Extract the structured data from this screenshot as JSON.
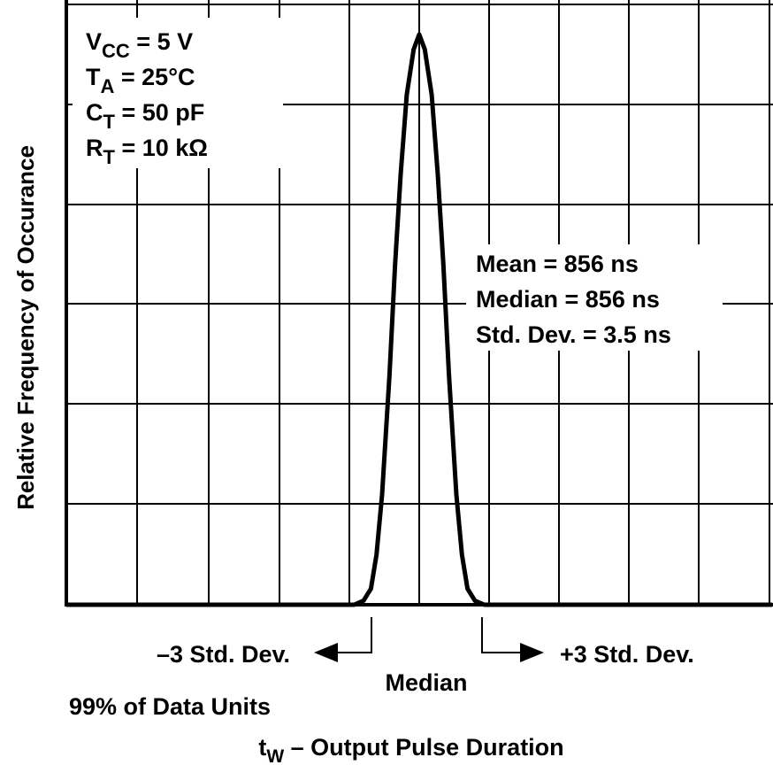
{
  "chart_data": {
    "type": "line",
    "y_label": "Relative Frequency of Occurance",
    "x_label": {
      "symbol": "t",
      "subscript": "W",
      "text": " – Output Pulse Duration"
    },
    "conditions": [
      {
        "symbol": "V",
        "subscript": "CC",
        "text": " = 5 V"
      },
      {
        "symbol": "T",
        "subscript": "A",
        "text": " = 25°C"
      },
      {
        "symbol": "C",
        "subscript": "T",
        "text": " = 50 pF"
      },
      {
        "symbol": "R",
        "subscript": "T",
        "text": " = 10 kΩ"
      }
    ],
    "statistics": [
      "Mean = 856 ns",
      "Median = 856 ns",
      "Std. Dev. = 3.5 ns"
    ],
    "annotations": {
      "minus": "–3 Std. Dev.",
      "plus": "+3 Std. Dev.",
      "median": "Median",
      "coverage": "99% of Data Units"
    },
    "x": [
      -19,
      -3.5,
      -3,
      -2.6,
      -2.3,
      -2,
      -1.6,
      -1.3,
      -1,
      -0.67,
      -0.3,
      0,
      0.3,
      0.67,
      1,
      1.3,
      1.6,
      2,
      2.3,
      2.6,
      3,
      3.5,
      19
    ],
    "series": [
      {
        "color": "#000000",
        "values": [
          0,
          0,
          0.04,
          0.16,
          0.5,
          1.1,
          2.3,
          3.4,
          4.3,
          5.1,
          5.55,
          5.7,
          5.55,
          5.1,
          4.3,
          3.4,
          2.3,
          1.1,
          0.5,
          0.16,
          0.04,
          0,
          0
        ]
      }
    ],
    "xlim": [
      -19,
      19
    ],
    "ylim": [
      0,
      6
    ]
  }
}
